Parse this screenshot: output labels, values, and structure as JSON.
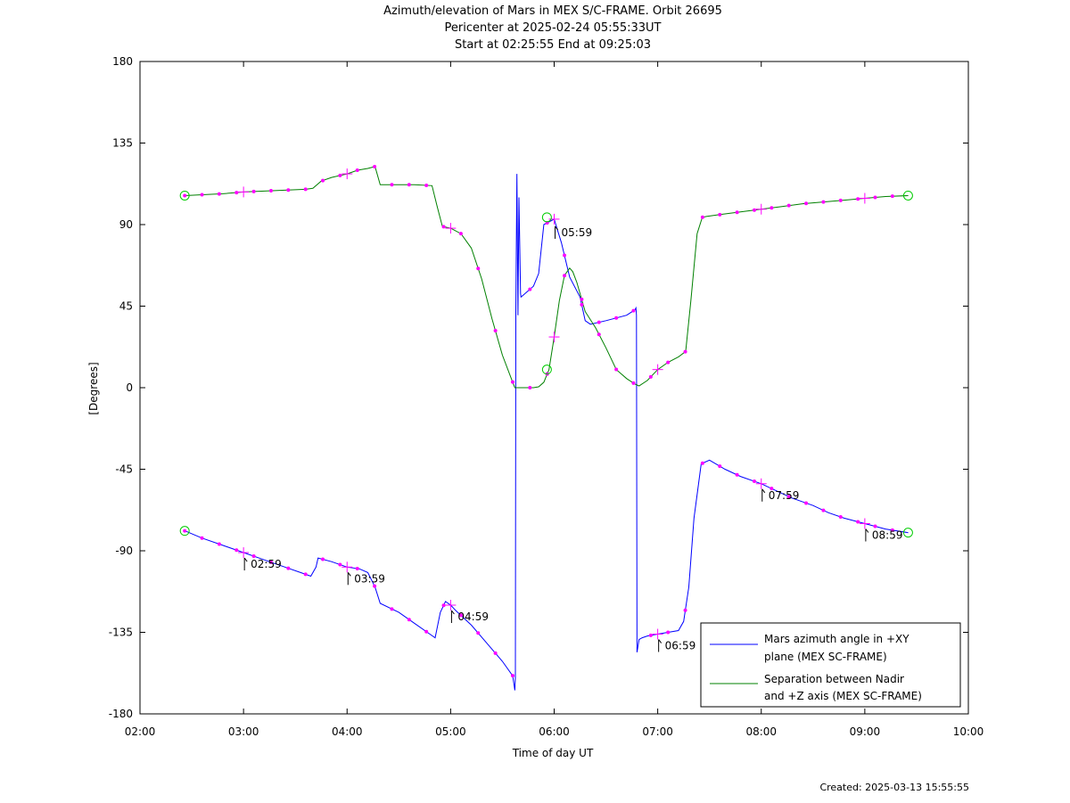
{
  "chart_data": {
    "type": "line",
    "title_lines": [
      "Azimuth/elevation of Mars in MEX S/C-FRAME.  Orbit 26695",
      "Pericenter at 2025-02-24 05:55:33UT",
      "Start at 02:25:55 End at 09:25:03"
    ],
    "xlabel": "Time of day UT",
    "ylabel": "[Degrees]",
    "xlim": [
      2.0,
      10.0
    ],
    "ylim": [
      -180,
      180
    ],
    "xticks": [
      2,
      3,
      4,
      5,
      6,
      7,
      8,
      9,
      10
    ],
    "xtick_labels": [
      "02:00",
      "03:00",
      "04:00",
      "05:00",
      "06:00",
      "07:00",
      "08:00",
      "09:00",
      "10:00"
    ],
    "yticks": [
      180,
      135,
      90,
      45,
      0,
      -45,
      -90,
      -135,
      -180
    ],
    "ytick_labels": [
      "180",
      "135",
      "90",
      "45",
      "0",
      "-45",
      "-90",
      "-135",
      "-180"
    ],
    "grid": false,
    "legend_position": "bottom-right",
    "series": [
      {
        "name": "Mars azimuth angle in +XY plane (MEX SC-FRAME)",
        "legend_lines": [
          "Mars azimuth angle in +XY",
          "plane (MEX SC-FRAME)"
        ],
        "color": "#0000ff",
        "x": [
          2.432,
          2.6,
          2.8,
          3.0,
          3.2,
          3.4,
          3.55,
          3.65,
          3.7,
          3.72,
          3.85,
          4.0,
          4.12,
          4.2,
          4.27,
          4.32,
          4.5,
          4.65,
          4.8,
          4.85,
          4.9,
          4.95,
          5.0,
          5.05,
          5.2,
          5.35,
          5.5,
          5.6,
          5.62,
          5.625,
          5.63,
          5.64,
          5.65,
          5.66,
          5.675,
          5.68,
          5.7,
          5.8,
          5.85,
          5.9,
          6.0,
          6.07,
          6.15,
          6.25,
          6.3,
          6.35,
          6.5,
          6.7,
          6.78,
          6.79,
          6.795,
          6.8,
          6.82,
          6.85,
          6.9,
          7.0,
          7.1,
          7.2,
          7.25,
          7.3,
          7.35,
          7.42,
          7.5,
          7.65,
          7.8,
          8.0,
          8.15,
          8.3,
          8.5,
          8.65,
          8.8,
          9.0,
          9.2,
          9.42
        ],
        "y": [
          -79,
          -83,
          -87,
          -91,
          -95,
          -99,
          -102,
          -104,
          -99,
          -94,
          -96,
          -99,
          -100,
          -102,
          -110,
          -119,
          -124,
          -130,
          -136,
          -138,
          -124,
          -118,
          -120,
          -123,
          -131,
          -141,
          -151,
          -159,
          -167,
          -160,
          42,
          118,
          40,
          105,
          52,
          50,
          51,
          56,
          63,
          90,
          93,
          80,
          61,
          50,
          37,
          35,
          37,
          40,
          43,
          44,
          40,
          -146,
          -139,
          -138,
          -137,
          -136,
          -135,
          -134,
          -129,
          -110,
          -72,
          -42,
          -40,
          -45,
          -49,
          -53,
          -57,
          -61,
          -65,
          -69,
          -72,
          -75,
          -78,
          -80
        ]
      },
      {
        "name": "Separation between Nadir and +Z axis (MEX SC-FRAME)",
        "legend_lines": [
          "Separation between Nadir",
          "and +Z axis (MEX SC-FRAME)"
        ],
        "color": "#008000",
        "x": [
          2.432,
          2.6,
          2.8,
          3.0,
          3.2,
          3.4,
          3.6,
          3.67,
          3.75,
          3.85,
          4.0,
          4.1,
          4.2,
          4.27,
          4.32,
          4.5,
          4.65,
          4.82,
          4.87,
          4.92,
          5.0,
          5.1,
          5.2,
          5.3,
          5.4,
          5.5,
          5.6,
          5.62,
          5.65,
          5.7,
          5.8,
          5.85,
          5.9,
          5.95,
          6.0,
          6.05,
          6.1,
          6.15,
          6.18,
          6.22,
          6.3,
          6.4,
          6.5,
          6.6,
          6.7,
          6.78,
          6.82,
          6.9,
          7.0,
          7.1,
          7.2,
          7.27,
          7.32,
          7.38,
          7.43,
          7.47,
          7.6,
          7.8,
          8.0,
          8.2,
          8.4,
          8.6,
          8.8,
          9.0,
          9.2,
          9.42
        ],
        "y": [
          106,
          106.5,
          107,
          108,
          108.5,
          109,
          109.5,
          110,
          114,
          116,
          118,
          120,
          121,
          122,
          112,
          112,
          112,
          111.5,
          100,
          89,
          88,
          85,
          77,
          60,
          38,
          18,
          3,
          0,
          0,
          0,
          0,
          0.5,
          3,
          10,
          28,
          48,
          62,
          66,
          64,
          58,
          42,
          33,
          22,
          10,
          5,
          2,
          1,
          4,
          10,
          14,
          17,
          20,
          48,
          85,
          94,
          94.5,
          95.5,
          97,
          98.5,
          100,
          101.5,
          102.5,
          103.5,
          104.5,
          105.5,
          106
        ]
      }
    ],
    "markers": {
      "color": "#ff00ff",
      "cross_times": [
        3.0,
        4.0,
        5.0,
        6.0,
        7.0,
        8.0,
        9.0
      ],
      "dot_step_hours": 0.1667,
      "circle_color": "#00cc00",
      "start_time": 2.432,
      "end_time": 9.418,
      "green_circle_extra": [
        5.93,
        5.93
      ]
    },
    "annotations": [
      {
        "label": "02:59",
        "x": 2.983,
        "y": -91
      },
      {
        "label": "03:59",
        "x": 3.983,
        "y": -99
      },
      {
        "label": "04:59",
        "x": 4.983,
        "y": -120
      },
      {
        "label": "05:59",
        "x": 5.983,
        "y": 92
      },
      {
        "label": "06:59",
        "x": 6.983,
        "y": -136
      },
      {
        "label": "07:59",
        "x": 7.983,
        "y": -53
      },
      {
        "label": "08:59",
        "x": 8.983,
        "y": -75
      }
    ]
  },
  "footer": {
    "created": "Created: 2025-03-13 15:55:55"
  }
}
